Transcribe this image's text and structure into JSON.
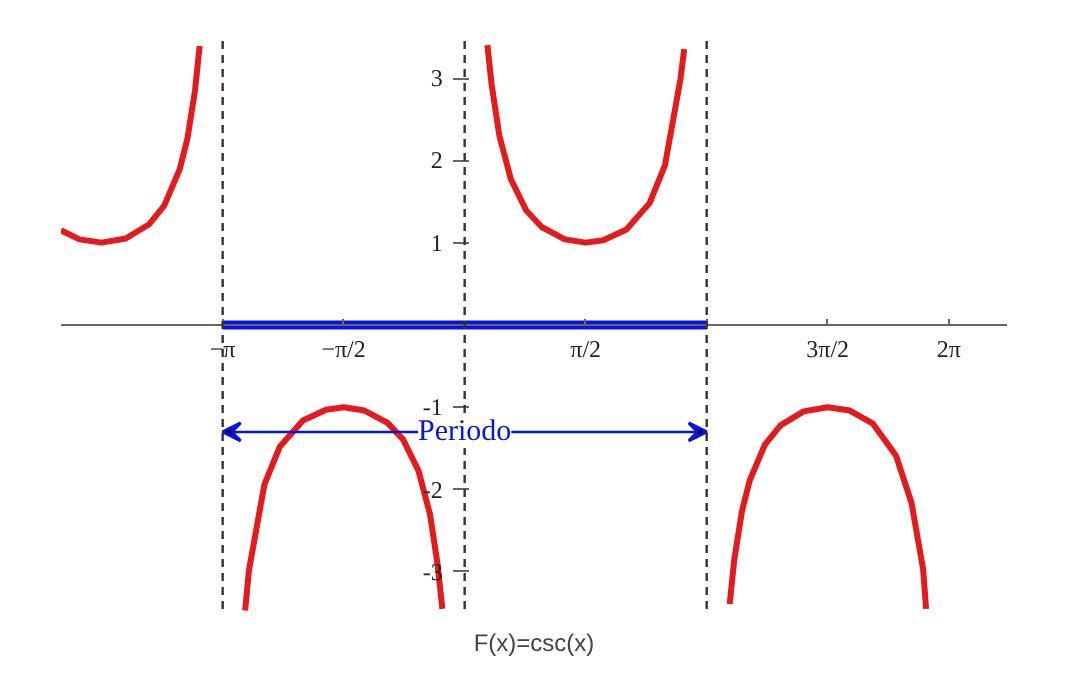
{
  "chart_data": {
    "type": "line",
    "title": "F(x)=csc(x)",
    "xlim": [
      -5.24,
      7.04
    ],
    "ylim": [
      -3.5,
      3.45
    ],
    "xticks": [
      {
        "value": -3.14159,
        "label": "−π"
      },
      {
        "value": -1.5708,
        "label": "−π/2"
      },
      {
        "value": 1.5708,
        "label": "π/2"
      },
      {
        "value": 3.14159,
        "label": null
      },
      {
        "value": 4.71239,
        "label": "3π/2"
      },
      {
        "value": 6.28319,
        "label": "2π"
      }
    ],
    "yticks": [
      -3,
      -2,
      -1,
      1,
      2,
      3
    ],
    "series": [
      {
        "color": "#e41a1c",
        "x": [
          -5.24,
          -5.0,
          -4.712,
          -4.4,
          -4.1,
          -3.9,
          -3.7,
          -3.6,
          -3.5,
          -3.44,
          null,
          -2.85,
          -2.8,
          -2.6,
          -2.4,
          -2.1,
          -1.8,
          -1.571,
          -1.3,
          -1.0,
          -0.8,
          -0.6,
          -0.45,
          -0.35,
          -0.29,
          null,
          0.295,
          0.35,
          0.45,
          0.6,
          0.8,
          1.0,
          1.3,
          1.571,
          1.8,
          2.1,
          2.4,
          2.6,
          2.8,
          2.85,
          null,
          3.44,
          3.5,
          3.6,
          3.7,
          3.9,
          4.1,
          4.4,
          4.712,
          5.0,
          5.3,
          5.6,
          5.8,
          5.95,
          5.99
        ],
        "values": [
          1.15,
          1.04,
          1.0,
          1.05,
          1.22,
          1.45,
          1.89,
          2.26,
          2.85,
          3.39,
          null,
          -3.47,
          -2.98,
          -1.94,
          -1.48,
          -1.16,
          -1.03,
          -1.0,
          -1.04,
          -1.19,
          -1.39,
          -1.77,
          -2.3,
          -2.92,
          -3.45,
          null,
          3.4,
          2.92,
          2.3,
          1.77,
          1.39,
          1.19,
          1.04,
          1.0,
          1.03,
          1.16,
          1.48,
          1.94,
          2.98,
          3.35,
          null,
          -3.39,
          -2.85,
          -2.26,
          -1.89,
          -1.45,
          -1.22,
          -1.05,
          -1.0,
          -1.04,
          -1.2,
          -1.59,
          -2.16,
          -2.96,
          -3.45
        ]
      },
      {
        "color": "#0a14e0",
        "x": [
          -3.14159,
          3.14159
        ],
        "values": [
          0,
          0
        ]
      }
    ],
    "ref_lines": [
      {
        "axis": "x",
        "value": -3.14159,
        "color": "#333333",
        "line_style": "dashed"
      },
      {
        "axis": "x",
        "value": 0,
        "color": "#333333",
        "line_style": "dashed"
      },
      {
        "axis": "x",
        "value": 3.14159,
        "color": "#333333",
        "line_style": "dashed"
      }
    ],
    "annotations": [
      {
        "text": "Periodo",
        "x": 0,
        "y": -1.3
      }
    ],
    "grid": false
  }
}
